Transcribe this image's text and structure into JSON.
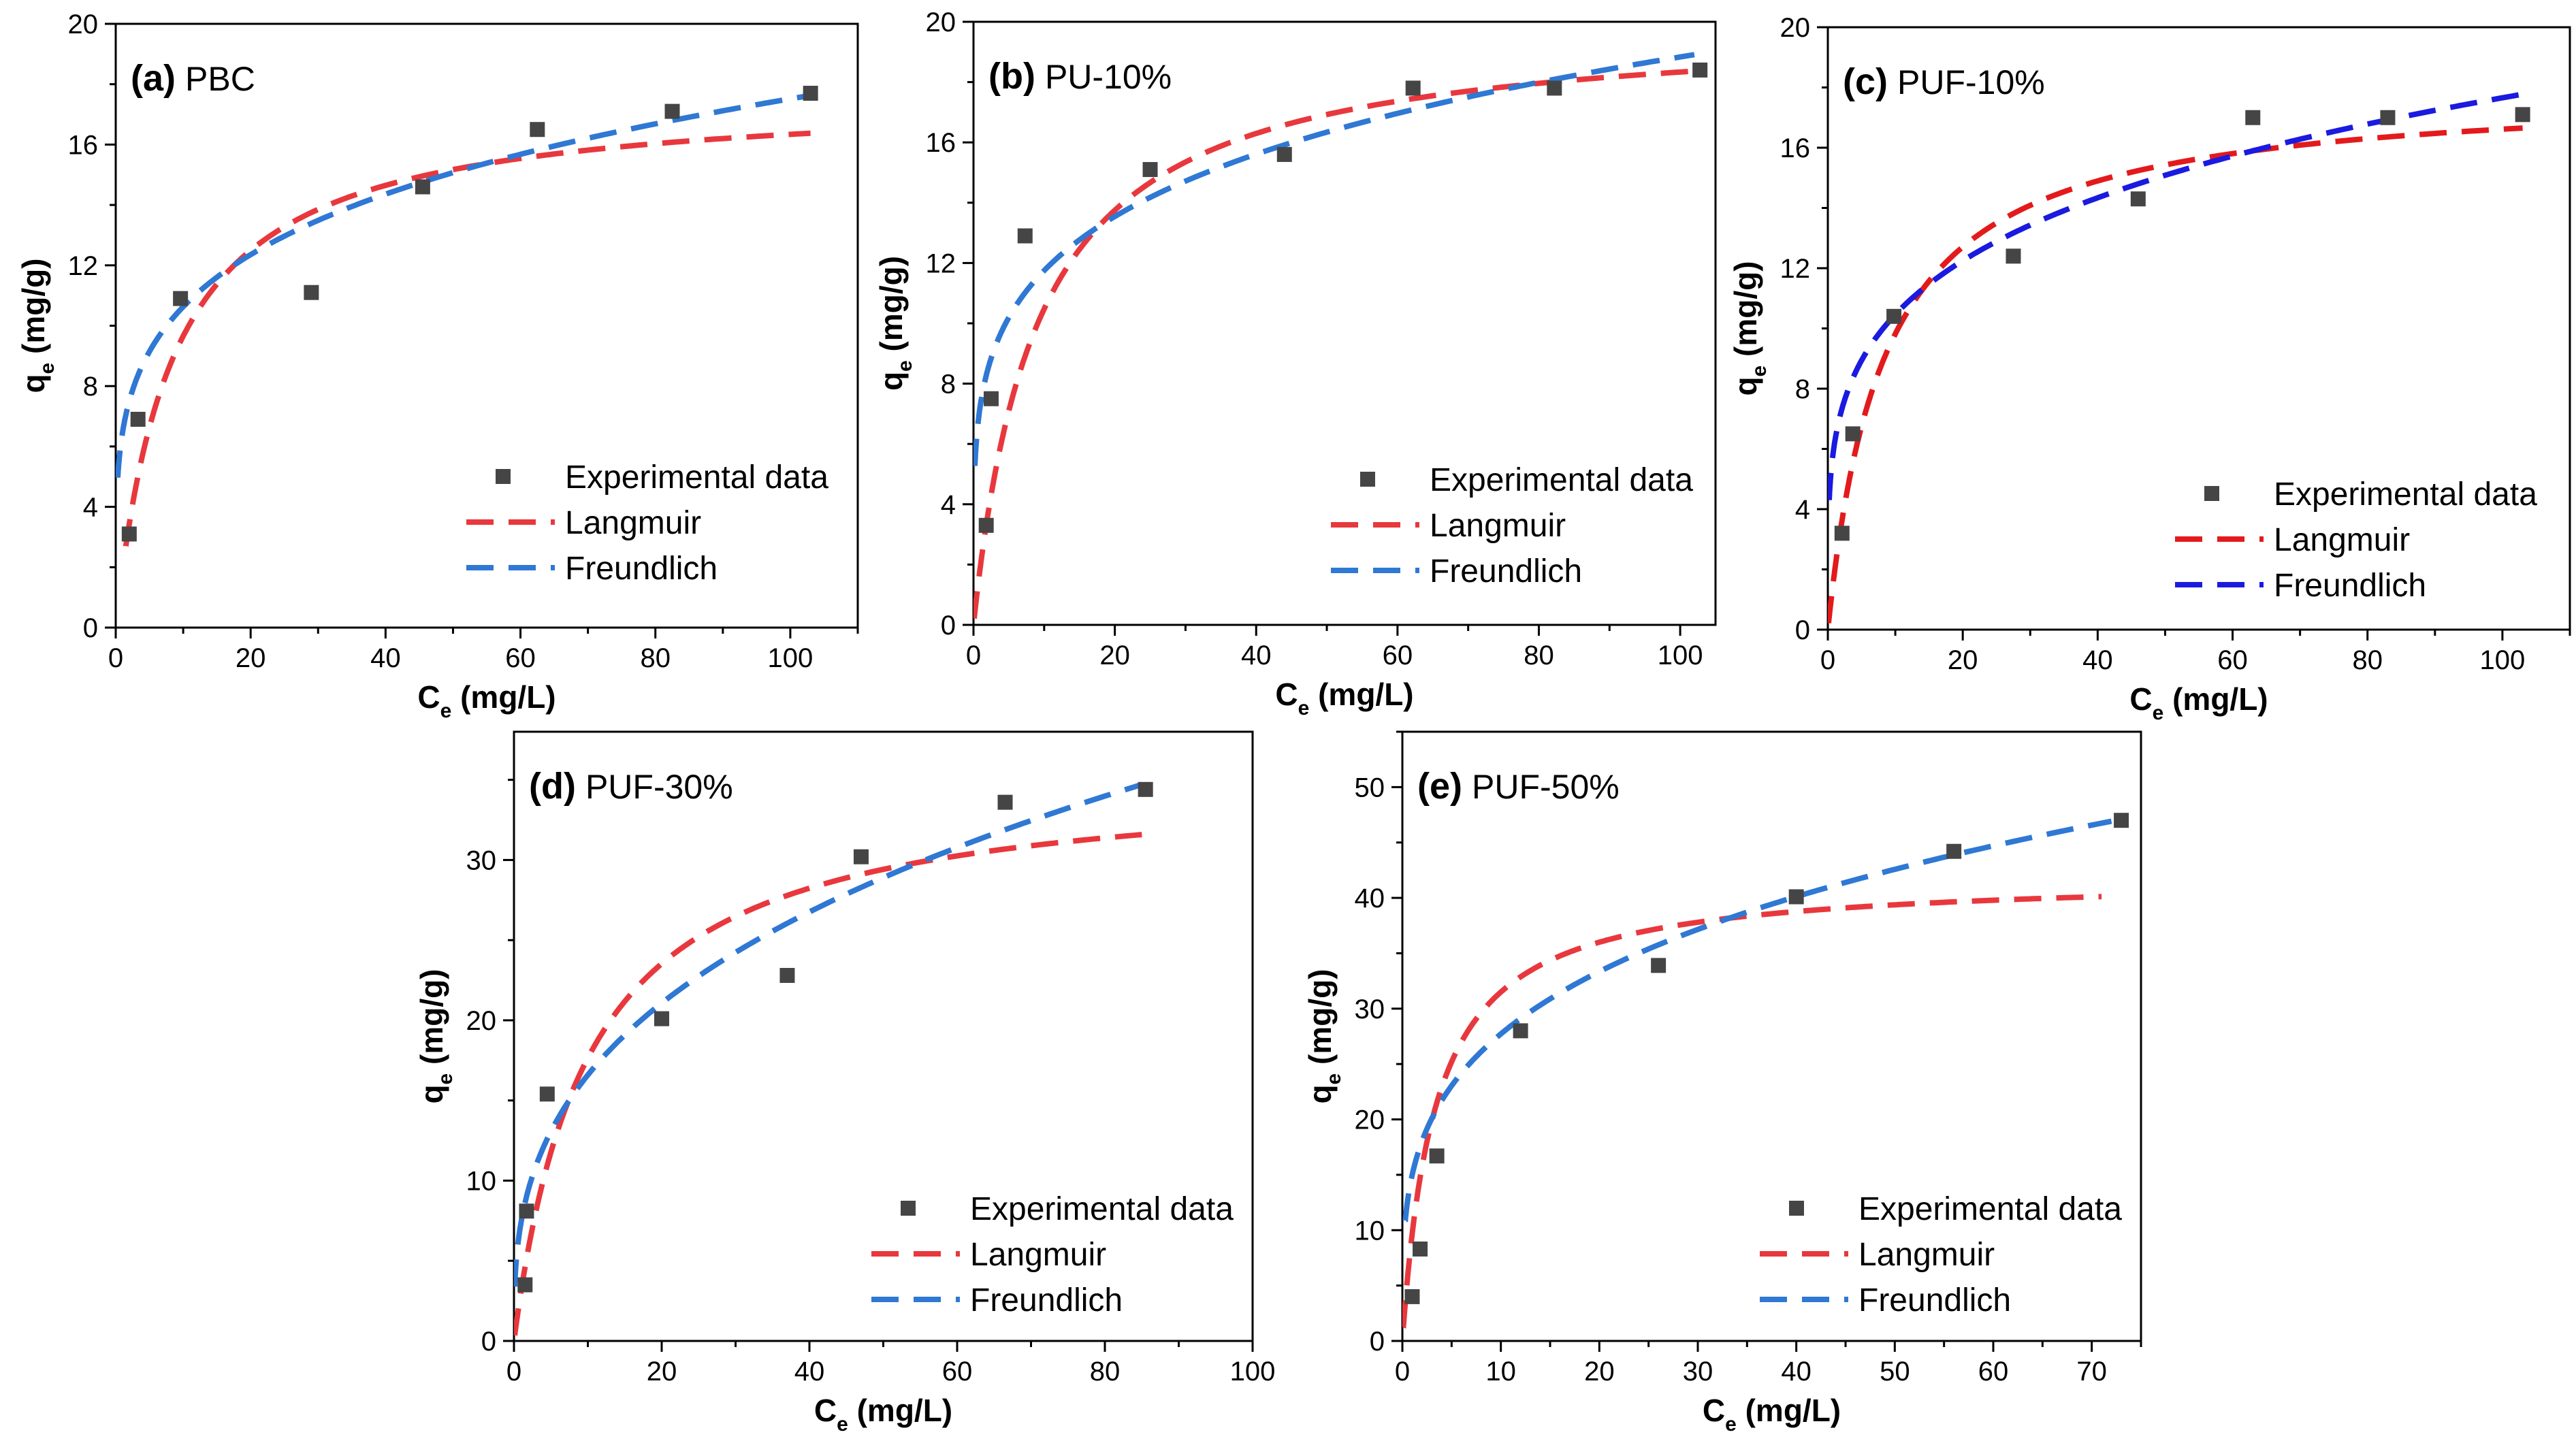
{
  "chart_data": [
    {
      "type": "scatter",
      "panel_letter": "(a)",
      "sample": "PBC",
      "xlabel": "C",
      "xlabel_sub": "e",
      "xlabel_unit": " (mg/L)",
      "ylabel": "q",
      "ylabel_sub": "e",
      "ylabel_unit": " (mg/g)",
      "xlim": [
        0,
        110
      ],
      "ylim": [
        0,
        20
      ],
      "xticks": [
        0,
        20,
        40,
        60,
        80,
        100
      ],
      "yticks": [
        0,
        4,
        8,
        12,
        16,
        20
      ],
      "grid": false,
      "legend": [
        "Experimental data",
        "Langmuir",
        "Freundlich"
      ],
      "colors": {
        "experimental": "#454545",
        "langmuir": "#e8383d",
        "freundlich": "#2f78d4"
      },
      "series": [
        {
          "name": "Experimental data",
          "kind": "points",
          "x": [
            2,
            3.3,
            9.6,
            29,
            45.5,
            62.5,
            82.5,
            103
          ],
          "y": [
            3.1,
            6.9,
            10.9,
            11.1,
            14.6,
            16.5,
            17.1,
            17.7
          ]
        },
        {
          "name": "Langmuir",
          "kind": "langmuir",
          "qm": 17.7,
          "kl": 0.12,
          "xmin": 1.5,
          "xmax": 103
        },
        {
          "name": "Freundlich",
          "kind": "freundlich",
          "kf": 6.45,
          "n": 4.61,
          "xmin": 0.3,
          "xmax": 103
        }
      ]
    },
    {
      "type": "scatter",
      "panel_letter": "(b)",
      "sample": "PU-10%",
      "xlabel": "C",
      "xlabel_sub": "e",
      "xlabel_unit": " (mg/L)",
      "ylabel": "q",
      "ylabel_sub": "e",
      "ylabel_unit": " (mg/g)",
      "xlim": [
        0,
        105
      ],
      "ylim": [
        0,
        20
      ],
      "xticks": [
        0,
        20,
        40,
        60,
        80,
        100
      ],
      "yticks": [
        0,
        4,
        8,
        12,
        16,
        20
      ],
      "grid": false,
      "legend": [
        "Experimental data",
        "Langmuir",
        "Freundlich"
      ],
      "colors": {
        "experimental": "#454545",
        "langmuir": "#e8383d",
        "freundlich": "#2f78d4"
      },
      "series": [
        {
          "name": "Experimental data",
          "kind": "points",
          "x": [
            1.8,
            2.5,
            7.3,
            25,
            44,
            62.2,
            82.2,
            102.8
          ],
          "y": [
            3.3,
            7.5,
            12.9,
            15.1,
            15.6,
            17.8,
            17.8,
            18.4
          ]
        },
        {
          "name": "Langmuir",
          "kind": "langmuir",
          "qm": 20,
          "kl": 0.11,
          "xmin": 0.1,
          "xmax": 102
        },
        {
          "name": "Freundlich",
          "kind": "freundlich",
          "kf": 7.33,
          "n": 4.88,
          "xmin": 0.2,
          "xmax": 102
        }
      ]
    },
    {
      "type": "scatter",
      "panel_letter": "(c)",
      "sample": "PUF-10%",
      "xlabel": "C",
      "xlabel_sub": "e",
      "xlabel_unit": " (mg/L)",
      "ylabel": "q",
      "ylabel_sub": "e",
      "ylabel_unit": " (mg/g)",
      "xlim": [
        0,
        110
      ],
      "ylim": [
        0,
        20
      ],
      "xticks": [
        0,
        20,
        40,
        60,
        80,
        100
      ],
      "yticks": [
        0,
        4,
        8,
        12,
        16,
        20
      ],
      "grid": false,
      "legend": [
        "Experimental data",
        "Langmuir",
        "Freundlich"
      ],
      "colors": {
        "experimental": "#454545",
        "langmuir": "#e31a1c",
        "freundlich": "#1a1ae0"
      },
      "series": [
        {
          "name": "Experimental data",
          "kind": "points",
          "x": [
            2.1,
            3.7,
            9.8,
            27.5,
            46,
            63,
            83,
            103
          ],
          "y": [
            3.2,
            6.5,
            10.4,
            12.4,
            14.3,
            17,
            17,
            17.1
          ]
        },
        {
          "name": "Langmuir",
          "kind": "langmuir",
          "qm": 18,
          "kl": 0.12,
          "xmin": 0.1,
          "xmax": 103
        },
        {
          "name": "Freundlich",
          "kind": "freundlich",
          "kf": 6.2,
          "n": 4.4,
          "xmin": 0.2,
          "xmax": 103
        }
      ]
    },
    {
      "type": "scatter",
      "panel_letter": "(d)",
      "sample": "PUF-30%",
      "xlabel": "C",
      "xlabel_sub": "e",
      "xlabel_unit": " (mg/L)",
      "ylabel": "q",
      "ylabel_sub": "e",
      "ylabel_unit": " (mg/g)",
      "xlim": [
        0,
        100
      ],
      "ylim": [
        0,
        38
      ],
      "xticks": [
        0,
        20,
        40,
        60,
        80,
        100
      ],
      "yticks": [
        0,
        10,
        20,
        30
      ],
      "grid": false,
      "legend": [
        "Experimental data",
        "Langmuir",
        "Freundlich"
      ],
      "colors": {
        "experimental": "#454545",
        "langmuir": "#e8383d",
        "freundlich": "#2f78d4"
      },
      "series": [
        {
          "name": "Experimental data",
          "kind": "points",
          "x": [
            1.5,
            1.7,
            4.5,
            20,
            37,
            47,
            66.5,
            85.5
          ],
          "y": [
            3.5,
            8.1,
            15.4,
            20.1,
            22.8,
            30.2,
            33.6,
            34.4
          ]
        },
        {
          "name": "Langmuir",
          "kind": "langmuir",
          "qm": 35.3,
          "kl": 0.1,
          "xmin": 0.1,
          "xmax": 85
        },
        {
          "name": "Freundlich",
          "kind": "freundlich",
          "kf": 7.5,
          "n": 2.9,
          "xmin": 0.1,
          "xmax": 85
        }
      ]
    },
    {
      "type": "scatter",
      "panel_letter": "(e)",
      "sample": "PUF-50%",
      "xlabel": "C",
      "xlabel_sub": "e",
      "xlabel_unit": " (mg/L)",
      "ylabel": "q",
      "ylabel_sub": "e",
      "ylabel_unit": " (mg/g)",
      "xlim": [
        0,
        75
      ],
      "ylim": [
        0,
        55
      ],
      "xticks": [
        0,
        10,
        20,
        30,
        40,
        50,
        60,
        70
      ],
      "yticks": [
        0,
        10,
        20,
        30,
        40,
        50
      ],
      "grid": false,
      "legend": [
        "Experimental data",
        "Langmuir",
        "Freundlich"
      ],
      "colors": {
        "experimental": "#454545",
        "langmuir": "#e8383d",
        "freundlich": "#2f78d4"
      },
      "series": [
        {
          "name": "Experimental data",
          "kind": "points",
          "x": [
            1,
            1.8,
            3.5,
            12,
            26,
            40,
            56,
            73
          ],
          "y": [
            4,
            8.3,
            16.7,
            28,
            33.9,
            40.1,
            44.2,
            47
          ]
        },
        {
          "name": "Langmuir",
          "kind": "langmuir",
          "qm": 42,
          "kl": 0.3,
          "xmin": 0.1,
          "xmax": 71
        },
        {
          "name": "Freundlich",
          "kind": "freundlich",
          "kf": 15,
          "n": 3.75,
          "xmin": 0.3,
          "xmax": 72
        }
      ]
    }
  ]
}
